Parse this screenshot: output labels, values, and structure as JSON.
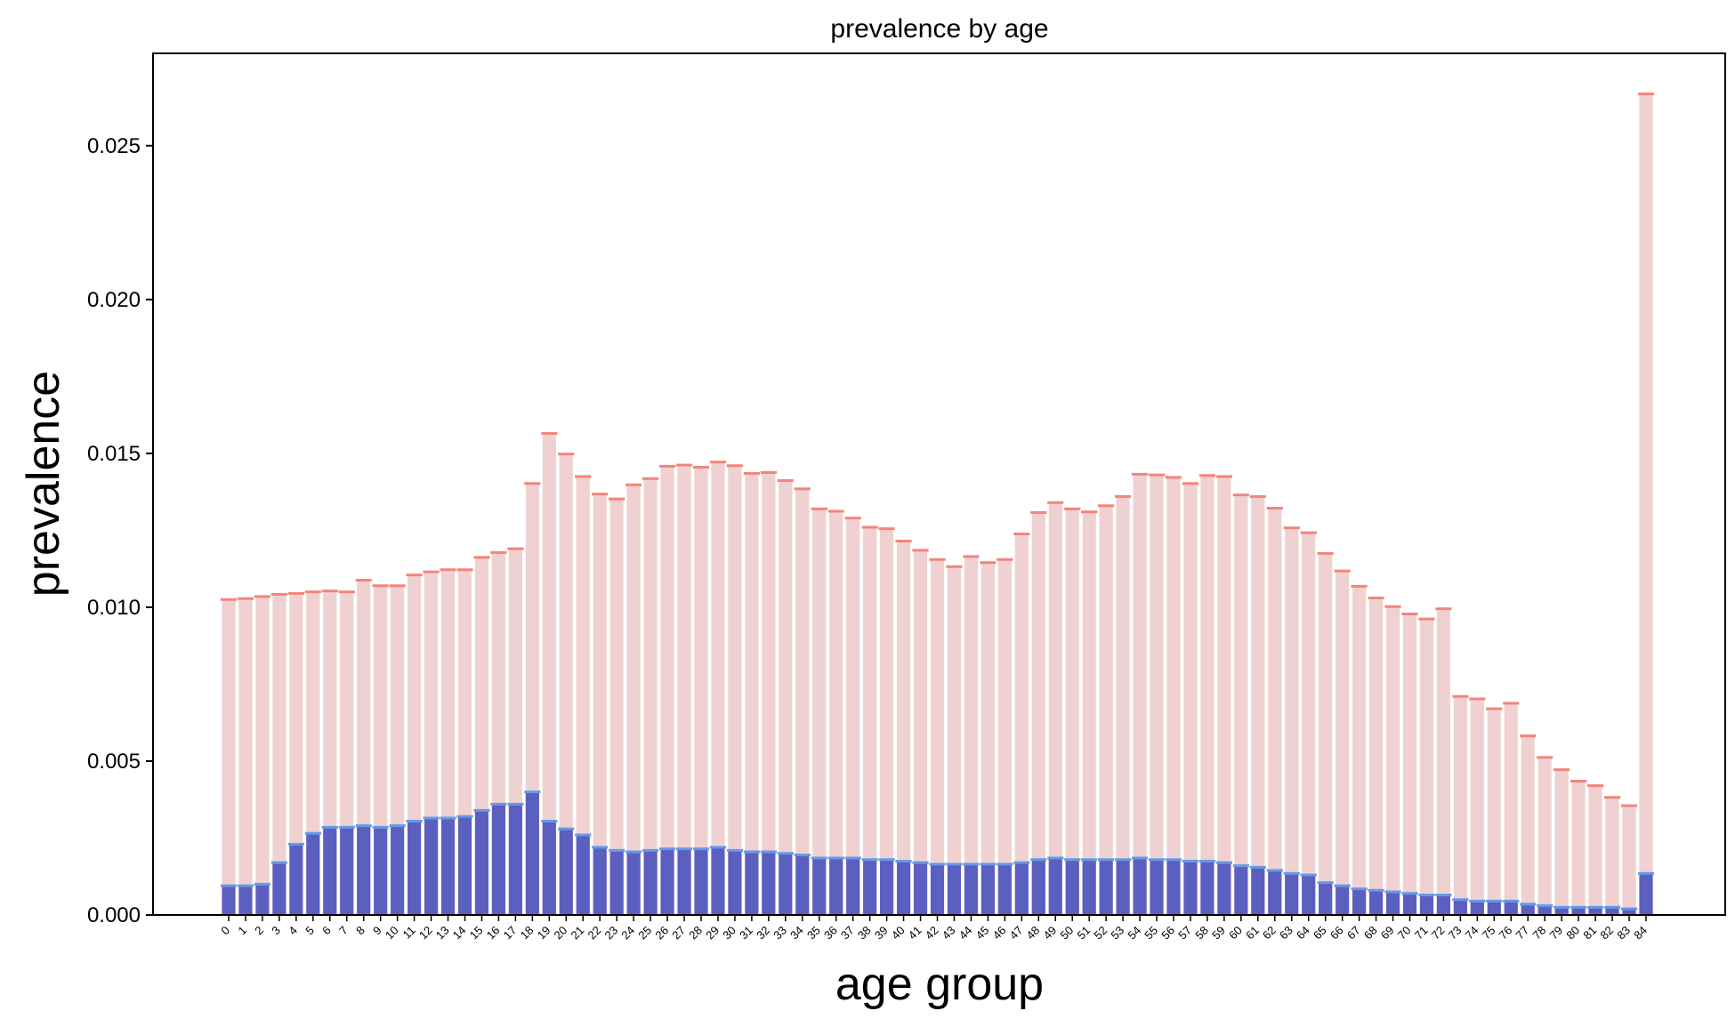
{
  "chart_data": {
    "type": "bar",
    "title": "prevalence by age",
    "xlabel": "age group",
    "ylabel": "prevalence",
    "ylim": [
      0,
      0.028
    ],
    "yticks": [
      "0.000",
      "0.005",
      "0.010",
      "0.015",
      "0.020",
      "0.025"
    ],
    "ytick_values": [
      0,
      0.005,
      0.01,
      0.015,
      0.02,
      0.025
    ],
    "grid": false,
    "legend": "none",
    "categories": [
      "0",
      "1",
      "2",
      "3",
      "4",
      "5",
      "6",
      "7",
      "8",
      "9",
      "10",
      "11",
      "12",
      "13",
      "14",
      "15",
      "16",
      "17",
      "18",
      "19",
      "20",
      "21",
      "22",
      "23",
      "24",
      "25",
      "26",
      "27",
      "28",
      "29",
      "30",
      "31",
      "32",
      "33",
      "34",
      "35",
      "36",
      "37",
      "38",
      "39",
      "40",
      "41",
      "42",
      "43",
      "44",
      "45",
      "46",
      "47",
      "48",
      "49",
      "50",
      "51",
      "52",
      "53",
      "54",
      "55",
      "56",
      "57",
      "58",
      "59",
      "60",
      "61",
      "62",
      "63",
      "64",
      "65",
      "66",
      "67",
      "68",
      "69",
      "70",
      "71",
      "72",
      "73",
      "74",
      "75",
      "76",
      "77",
      "78",
      "79",
      "80",
      "81",
      "82",
      "83",
      "84"
    ],
    "series": [
      {
        "color": "#f0d1d1",
        "cap_color": "#f2857b",
        "values": [
          0.01025,
          0.01028,
          0.01035,
          0.01042,
          0.01045,
          0.0105,
          0.01053,
          0.0105,
          0.01088,
          0.0107,
          0.0107,
          0.01105,
          0.01115,
          0.01122,
          0.01122,
          0.01162,
          0.01178,
          0.0119,
          0.01402,
          0.01565,
          0.01498,
          0.01425,
          0.01368,
          0.01352,
          0.01398,
          0.01418,
          0.01458,
          0.01462,
          0.01455,
          0.01472,
          0.0146,
          0.01435,
          0.01438,
          0.01412,
          0.01385,
          0.0132,
          0.01312,
          0.0129,
          0.0126,
          0.01255,
          0.01215,
          0.01185,
          0.01155,
          0.01132,
          0.01165,
          0.01145,
          0.01155,
          0.01238,
          0.01308,
          0.0134,
          0.0132,
          0.0131,
          0.0133,
          0.0136,
          0.01432,
          0.0143,
          0.01422,
          0.01402,
          0.01428,
          0.01425,
          0.01365,
          0.0136,
          0.01322,
          0.01258,
          0.01242,
          0.01175,
          0.01118,
          0.01068,
          0.0103,
          0.01002,
          0.00978,
          0.00962,
          0.00995,
          0.0071,
          0.00702,
          0.0067,
          0.00688,
          0.00582,
          0.00512,
          0.00472,
          0.00435,
          0.0042,
          0.00382,
          0.00355,
          0.02668
        ]
      },
      {
        "color": "#5b5fc0",
        "cap_color": "#6699e8",
        "values": [
          0.00095,
          0.00095,
          0.001,
          0.0017,
          0.0023,
          0.00265,
          0.00285,
          0.00285,
          0.0029,
          0.00285,
          0.0029,
          0.00305,
          0.00315,
          0.00315,
          0.0032,
          0.0034,
          0.0036,
          0.0036,
          0.004,
          0.00305,
          0.0028,
          0.0026,
          0.0022,
          0.0021,
          0.00205,
          0.0021,
          0.00215,
          0.00215,
          0.00215,
          0.0022,
          0.0021,
          0.00205,
          0.00205,
          0.002,
          0.00195,
          0.00185,
          0.00185,
          0.00185,
          0.0018,
          0.0018,
          0.00175,
          0.0017,
          0.00165,
          0.00165,
          0.00165,
          0.00165,
          0.00165,
          0.0017,
          0.0018,
          0.00185,
          0.0018,
          0.0018,
          0.0018,
          0.0018,
          0.00185,
          0.0018,
          0.0018,
          0.00175,
          0.00175,
          0.0017,
          0.0016,
          0.00155,
          0.00145,
          0.00135,
          0.0013,
          0.00105,
          0.00095,
          0.00085,
          0.0008,
          0.00075,
          0.0007,
          0.00065,
          0.00065,
          0.0005,
          0.00045,
          0.00045,
          0.00045,
          0.00035,
          0.0003,
          0.00025,
          0.00025,
          0.00025,
          0.00025,
          0.0002,
          0.00135
        ]
      }
    ]
  }
}
